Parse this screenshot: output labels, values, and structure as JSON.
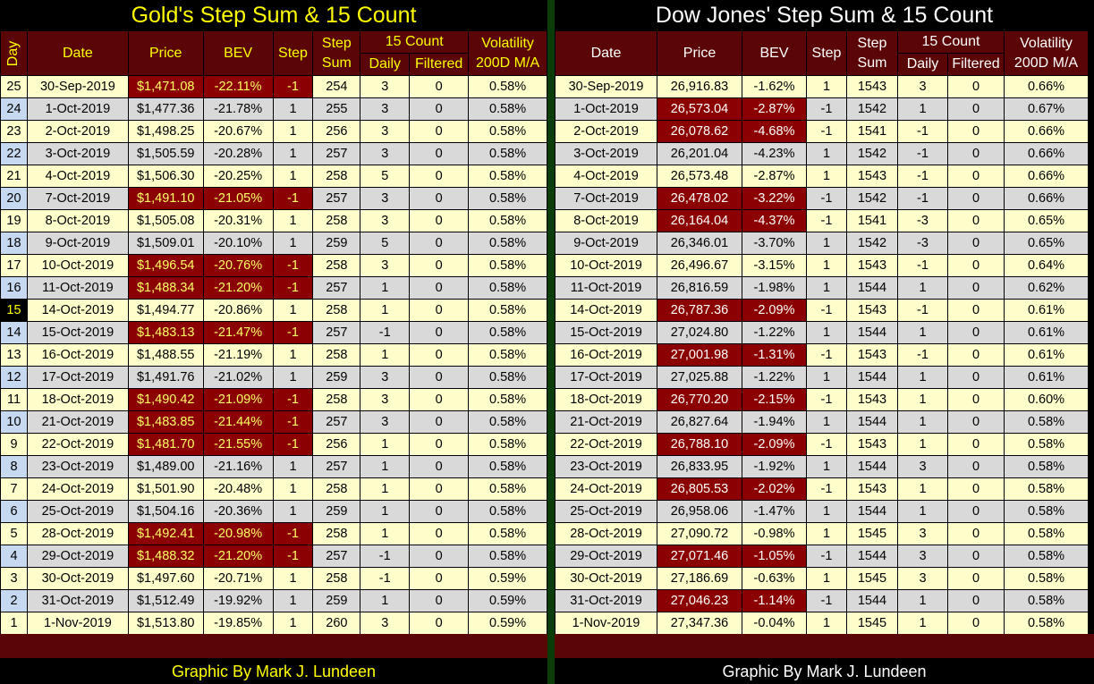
{
  "gold": {
    "title": "Gold's Step Sum & 15 Count",
    "headers": {
      "day": "Day",
      "date": "Date",
      "price": "Price",
      "bev": "BEV",
      "step": "Step",
      "step_sum": "Step Sum",
      "fifteen_count": "15 Count",
      "daily": "Daily",
      "filtered": "Filtered",
      "volatility": "Volatility 200D M/A"
    },
    "credit": "Graphic By Mark J. Lundeen",
    "rows": [
      {
        "day": "25",
        "date": "30-Sep-2019",
        "price": "$1,471.08",
        "bev": "-22.11%",
        "step": "-1",
        "sum": "254",
        "daily": "3",
        "filtered": "0",
        "vol": "0.58%"
      },
      {
        "day": "24",
        "date": "1-Oct-2019",
        "price": "$1,477.36",
        "bev": "-21.78%",
        "step": "1",
        "sum": "255",
        "daily": "3",
        "filtered": "0",
        "vol": "0.58%"
      },
      {
        "day": "23",
        "date": "2-Oct-2019",
        "price": "$1,498.25",
        "bev": "-20.67%",
        "step": "1",
        "sum": "256",
        "daily": "3",
        "filtered": "0",
        "vol": "0.58%"
      },
      {
        "day": "22",
        "date": "3-Oct-2019",
        "price": "$1,505.59",
        "bev": "-20.28%",
        "step": "1",
        "sum": "257",
        "daily": "3",
        "filtered": "0",
        "vol": "0.58%"
      },
      {
        "day": "21",
        "date": "4-Oct-2019",
        "price": "$1,506.30",
        "bev": "-20.25%",
        "step": "1",
        "sum": "258",
        "daily": "5",
        "filtered": "0",
        "vol": "0.58%"
      },
      {
        "day": "20",
        "date": "7-Oct-2019",
        "price": "$1,491.10",
        "bev": "-21.05%",
        "step": "-1",
        "sum": "257",
        "daily": "3",
        "filtered": "0",
        "vol": "0.58%"
      },
      {
        "day": "19",
        "date": "8-Oct-2019",
        "price": "$1,505.08",
        "bev": "-20.31%",
        "step": "1",
        "sum": "258",
        "daily": "3",
        "filtered": "0",
        "vol": "0.58%"
      },
      {
        "day": "18",
        "date": "9-Oct-2019",
        "price": "$1,509.01",
        "bev": "-20.10%",
        "step": "1",
        "sum": "259",
        "daily": "5",
        "filtered": "0",
        "vol": "0.58%"
      },
      {
        "day": "17",
        "date": "10-Oct-2019",
        "price": "$1,496.54",
        "bev": "-20.76%",
        "step": "-1",
        "sum": "258",
        "daily": "3",
        "filtered": "0",
        "vol": "0.58%"
      },
      {
        "day": "16",
        "date": "11-Oct-2019",
        "price": "$1,488.34",
        "bev": "-21.20%",
        "step": "-1",
        "sum": "257",
        "daily": "1",
        "filtered": "0",
        "vol": "0.58%"
      },
      {
        "day": "15",
        "date": "14-Oct-2019",
        "price": "$1,494.77",
        "bev": "-20.86%",
        "step": "1",
        "sum": "258",
        "daily": "1",
        "filtered": "0",
        "vol": "0.58%"
      },
      {
        "day": "14",
        "date": "15-Oct-2019",
        "price": "$1,483.13",
        "bev": "-21.47%",
        "step": "-1",
        "sum": "257",
        "daily": "-1",
        "filtered": "0",
        "vol": "0.58%"
      },
      {
        "day": "13",
        "date": "16-Oct-2019",
        "price": "$1,488.55",
        "bev": "-21.19%",
        "step": "1",
        "sum": "258",
        "daily": "1",
        "filtered": "0",
        "vol": "0.58%"
      },
      {
        "day": "12",
        "date": "17-Oct-2019",
        "price": "$1,491.76",
        "bev": "-21.02%",
        "step": "1",
        "sum": "259",
        "daily": "3",
        "filtered": "0",
        "vol": "0.58%"
      },
      {
        "day": "11",
        "date": "18-Oct-2019",
        "price": "$1,490.42",
        "bev": "-21.09%",
        "step": "-1",
        "sum": "258",
        "daily": "3",
        "filtered": "0",
        "vol": "0.58%"
      },
      {
        "day": "10",
        "date": "21-Oct-2019",
        "price": "$1,483.85",
        "bev": "-21.44%",
        "step": "-1",
        "sum": "257",
        "daily": "3",
        "filtered": "0",
        "vol": "0.58%"
      },
      {
        "day": "9",
        "date": "22-Oct-2019",
        "price": "$1,481.70",
        "bev": "-21.55%",
        "step": "-1",
        "sum": "256",
        "daily": "1",
        "filtered": "0",
        "vol": "0.58%"
      },
      {
        "day": "8",
        "date": "23-Oct-2019",
        "price": "$1,489.00",
        "bev": "-21.16%",
        "step": "1",
        "sum": "257",
        "daily": "1",
        "filtered": "0",
        "vol": "0.58%"
      },
      {
        "day": "7",
        "date": "24-Oct-2019",
        "price": "$1,501.90",
        "bev": "-20.48%",
        "step": "1",
        "sum": "258",
        "daily": "1",
        "filtered": "0",
        "vol": "0.58%"
      },
      {
        "day": "6",
        "date": "25-Oct-2019",
        "price": "$1,504.16",
        "bev": "-20.36%",
        "step": "1",
        "sum": "259",
        "daily": "1",
        "filtered": "0",
        "vol": "0.58%"
      },
      {
        "day": "5",
        "date": "28-Oct-2019",
        "price": "$1,492.41",
        "bev": "-20.98%",
        "step": "-1",
        "sum": "258",
        "daily": "1",
        "filtered": "0",
        "vol": "0.58%"
      },
      {
        "day": "4",
        "date": "29-Oct-2019",
        "price": "$1,488.32",
        "bev": "-21.20%",
        "step": "-1",
        "sum": "257",
        "daily": "-1",
        "filtered": "0",
        "vol": "0.58%"
      },
      {
        "day": "3",
        "date": "30-Oct-2019",
        "price": "$1,497.60",
        "bev": "-20.71%",
        "step": "1",
        "sum": "258",
        "daily": "-1",
        "filtered": "0",
        "vol": "0.59%"
      },
      {
        "day": "2",
        "date": "31-Oct-2019",
        "price": "$1,512.49",
        "bev": "-19.92%",
        "step": "1",
        "sum": "259",
        "daily": "1",
        "filtered": "0",
        "vol": "0.59%"
      },
      {
        "day": "1",
        "date": "1-Nov-2019",
        "price": "$1,513.80",
        "bev": "-19.85%",
        "step": "1",
        "sum": "260",
        "daily": "3",
        "filtered": "0",
        "vol": "0.59%"
      }
    ]
  },
  "dow": {
    "title": "Dow Jones' Step Sum & 15 Count",
    "headers": {
      "date": "Date",
      "price": "Price",
      "bev": "BEV",
      "step": "Step",
      "step_sum": "Step Sum",
      "fifteen_count": "15 Count",
      "daily": "Daily",
      "filtered": "Filtered",
      "volatility": "Volatility 200D M/A"
    },
    "credit": "Graphic By Mark J. Lundeen",
    "rows": [
      {
        "date": "30-Sep-2019",
        "price": "26,916.83",
        "bev": "-1.62%",
        "step": "1",
        "sum": "1543",
        "daily": "3",
        "filtered": "0",
        "vol": "0.66%"
      },
      {
        "date": "1-Oct-2019",
        "price": "26,573.04",
        "bev": "-2.87%",
        "step": "-1",
        "sum": "1542",
        "daily": "1",
        "filtered": "0",
        "vol": "0.67%"
      },
      {
        "date": "2-Oct-2019",
        "price": "26,078.62",
        "bev": "-4.68%",
        "step": "-1",
        "sum": "1541",
        "daily": "-1",
        "filtered": "0",
        "vol": "0.66%"
      },
      {
        "date": "3-Oct-2019",
        "price": "26,201.04",
        "bev": "-4.23%",
        "step": "1",
        "sum": "1542",
        "daily": "-1",
        "filtered": "0",
        "vol": "0.66%"
      },
      {
        "date": "4-Oct-2019",
        "price": "26,573.48",
        "bev": "-2.87%",
        "step": "1",
        "sum": "1543",
        "daily": "-1",
        "filtered": "0",
        "vol": "0.66%"
      },
      {
        "date": "7-Oct-2019",
        "price": "26,478.02",
        "bev": "-3.22%",
        "step": "-1",
        "sum": "1542",
        "daily": "-1",
        "filtered": "0",
        "vol": "0.66%"
      },
      {
        "date": "8-Oct-2019",
        "price": "26,164.04",
        "bev": "-4.37%",
        "step": "-1",
        "sum": "1541",
        "daily": "-3",
        "filtered": "0",
        "vol": "0.65%"
      },
      {
        "date": "9-Oct-2019",
        "price": "26,346.01",
        "bev": "-3.70%",
        "step": "1",
        "sum": "1542",
        "daily": "-3",
        "filtered": "0",
        "vol": "0.65%"
      },
      {
        "date": "10-Oct-2019",
        "price": "26,496.67",
        "bev": "-3.15%",
        "step": "1",
        "sum": "1543",
        "daily": "-1",
        "filtered": "0",
        "vol": "0.64%"
      },
      {
        "date": "11-Oct-2019",
        "price": "26,816.59",
        "bev": "-1.98%",
        "step": "1",
        "sum": "1544",
        "daily": "1",
        "filtered": "0",
        "vol": "0.62%"
      },
      {
        "date": "14-Oct-2019",
        "price": "26,787.36",
        "bev": "-2.09%",
        "step": "-1",
        "sum": "1543",
        "daily": "-1",
        "filtered": "0",
        "vol": "0.61%"
      },
      {
        "date": "15-Oct-2019",
        "price": "27,024.80",
        "bev": "-1.22%",
        "step": "1",
        "sum": "1544",
        "daily": "1",
        "filtered": "0",
        "vol": "0.61%"
      },
      {
        "date": "16-Oct-2019",
        "price": "27,001.98",
        "bev": "-1.31%",
        "step": "-1",
        "sum": "1543",
        "daily": "-1",
        "filtered": "0",
        "vol": "0.61%"
      },
      {
        "date": "17-Oct-2019",
        "price": "27,025.88",
        "bev": "-1.22%",
        "step": "1",
        "sum": "1544",
        "daily": "1",
        "filtered": "0",
        "vol": "0.61%"
      },
      {
        "date": "18-Oct-2019",
        "price": "26,770.20",
        "bev": "-2.15%",
        "step": "-1",
        "sum": "1543",
        "daily": "1",
        "filtered": "0",
        "vol": "0.60%"
      },
      {
        "date": "21-Oct-2019",
        "price": "26,827.64",
        "bev": "-1.94%",
        "step": "1",
        "sum": "1544",
        "daily": "1",
        "filtered": "0",
        "vol": "0.58%"
      },
      {
        "date": "22-Oct-2019",
        "price": "26,788.10",
        "bev": "-2.09%",
        "step": "-1",
        "sum": "1543",
        "daily": "1",
        "filtered": "0",
        "vol": "0.58%"
      },
      {
        "date": "23-Oct-2019",
        "price": "26,833.95",
        "bev": "-1.92%",
        "step": "1",
        "sum": "1544",
        "daily": "3",
        "filtered": "0",
        "vol": "0.58%"
      },
      {
        "date": "24-Oct-2019",
        "price": "26,805.53",
        "bev": "-2.02%",
        "step": "-1",
        "sum": "1543",
        "daily": "1",
        "filtered": "0",
        "vol": "0.58%"
      },
      {
        "date": "25-Oct-2019",
        "price": "26,958.06",
        "bev": "-1.47%",
        "step": "1",
        "sum": "1544",
        "daily": "1",
        "filtered": "0",
        "vol": "0.58%"
      },
      {
        "date": "28-Oct-2019",
        "price": "27,090.72",
        "bev": "-0.98%",
        "step": "1",
        "sum": "1545",
        "daily": "3",
        "filtered": "0",
        "vol": "0.58%"
      },
      {
        "date": "29-Oct-2019",
        "price": "27,071.46",
        "bev": "-1.05%",
        "step": "-1",
        "sum": "1544",
        "daily": "3",
        "filtered": "0",
        "vol": "0.58%"
      },
      {
        "date": "30-Oct-2019",
        "price": "27,186.69",
        "bev": "-0.63%",
        "step": "1",
        "sum": "1545",
        "daily": "3",
        "filtered": "0",
        "vol": "0.58%"
      },
      {
        "date": "31-Oct-2019",
        "price": "27,046.23",
        "bev": "-1.14%",
        "step": "-1",
        "sum": "1544",
        "daily": "1",
        "filtered": "0",
        "vol": "0.58%"
      },
      {
        "date": "1-Nov-2019",
        "price": "27,347.36",
        "bev": "-0.04%",
        "step": "1",
        "sum": "1545",
        "daily": "1",
        "filtered": "0",
        "vol": "0.58%"
      }
    ]
  }
}
